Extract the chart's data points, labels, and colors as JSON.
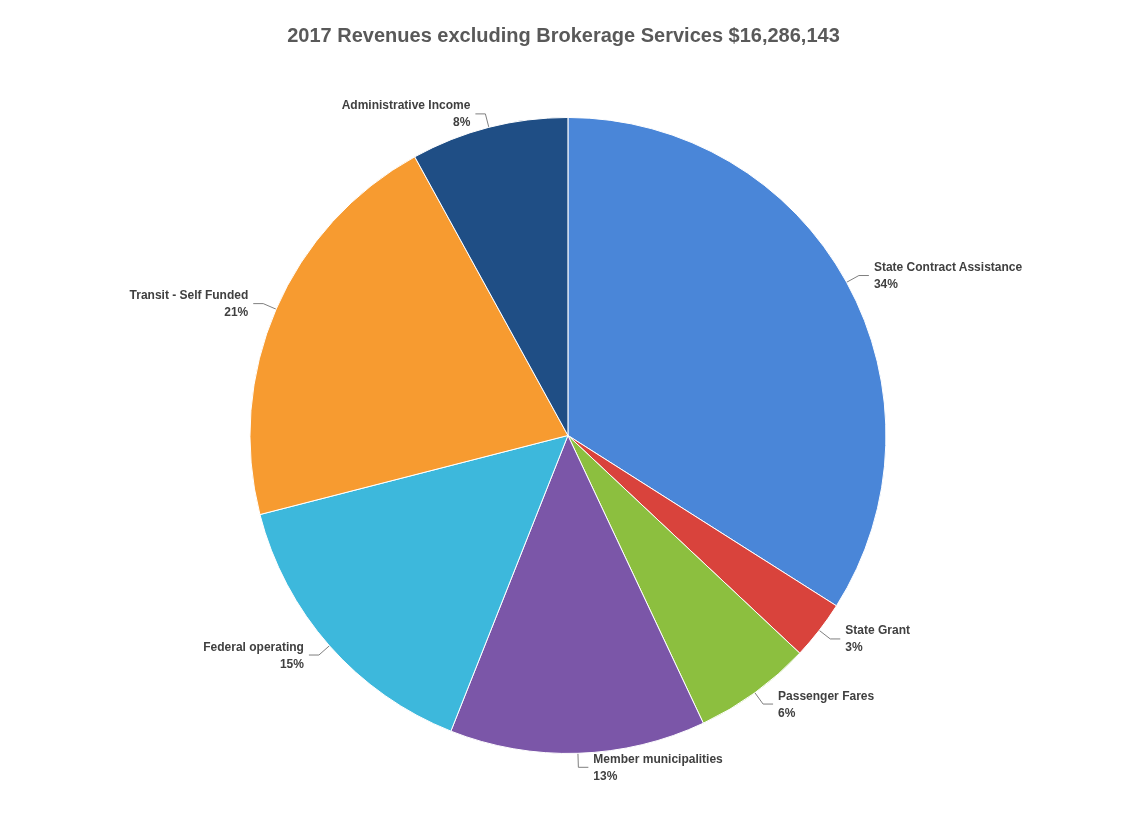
{
  "chart_data": {
    "type": "pie",
    "title": "2017 Revenues excluding Brokerage Services $16,286,143",
    "categories": [
      "State Contract Assistance",
      "State Grant",
      "Passenger Fares",
      "Member municipalities",
      "Federal operating",
      "Transit - Self Funded",
      "Administrative Income"
    ],
    "values": [
      34,
      3,
      6,
      13,
      15,
      21,
      8
    ],
    "value_labels": [
      "34%",
      "3%",
      "6%",
      "13%",
      "15%",
      "21%",
      "8%"
    ],
    "colors": [
      "#4a86d8",
      "#d9433c",
      "#8cbf3f",
      "#7b56a8",
      "#3db8dc",
      "#f79b30",
      "#1f4e85"
    ],
    "legend": false
  }
}
